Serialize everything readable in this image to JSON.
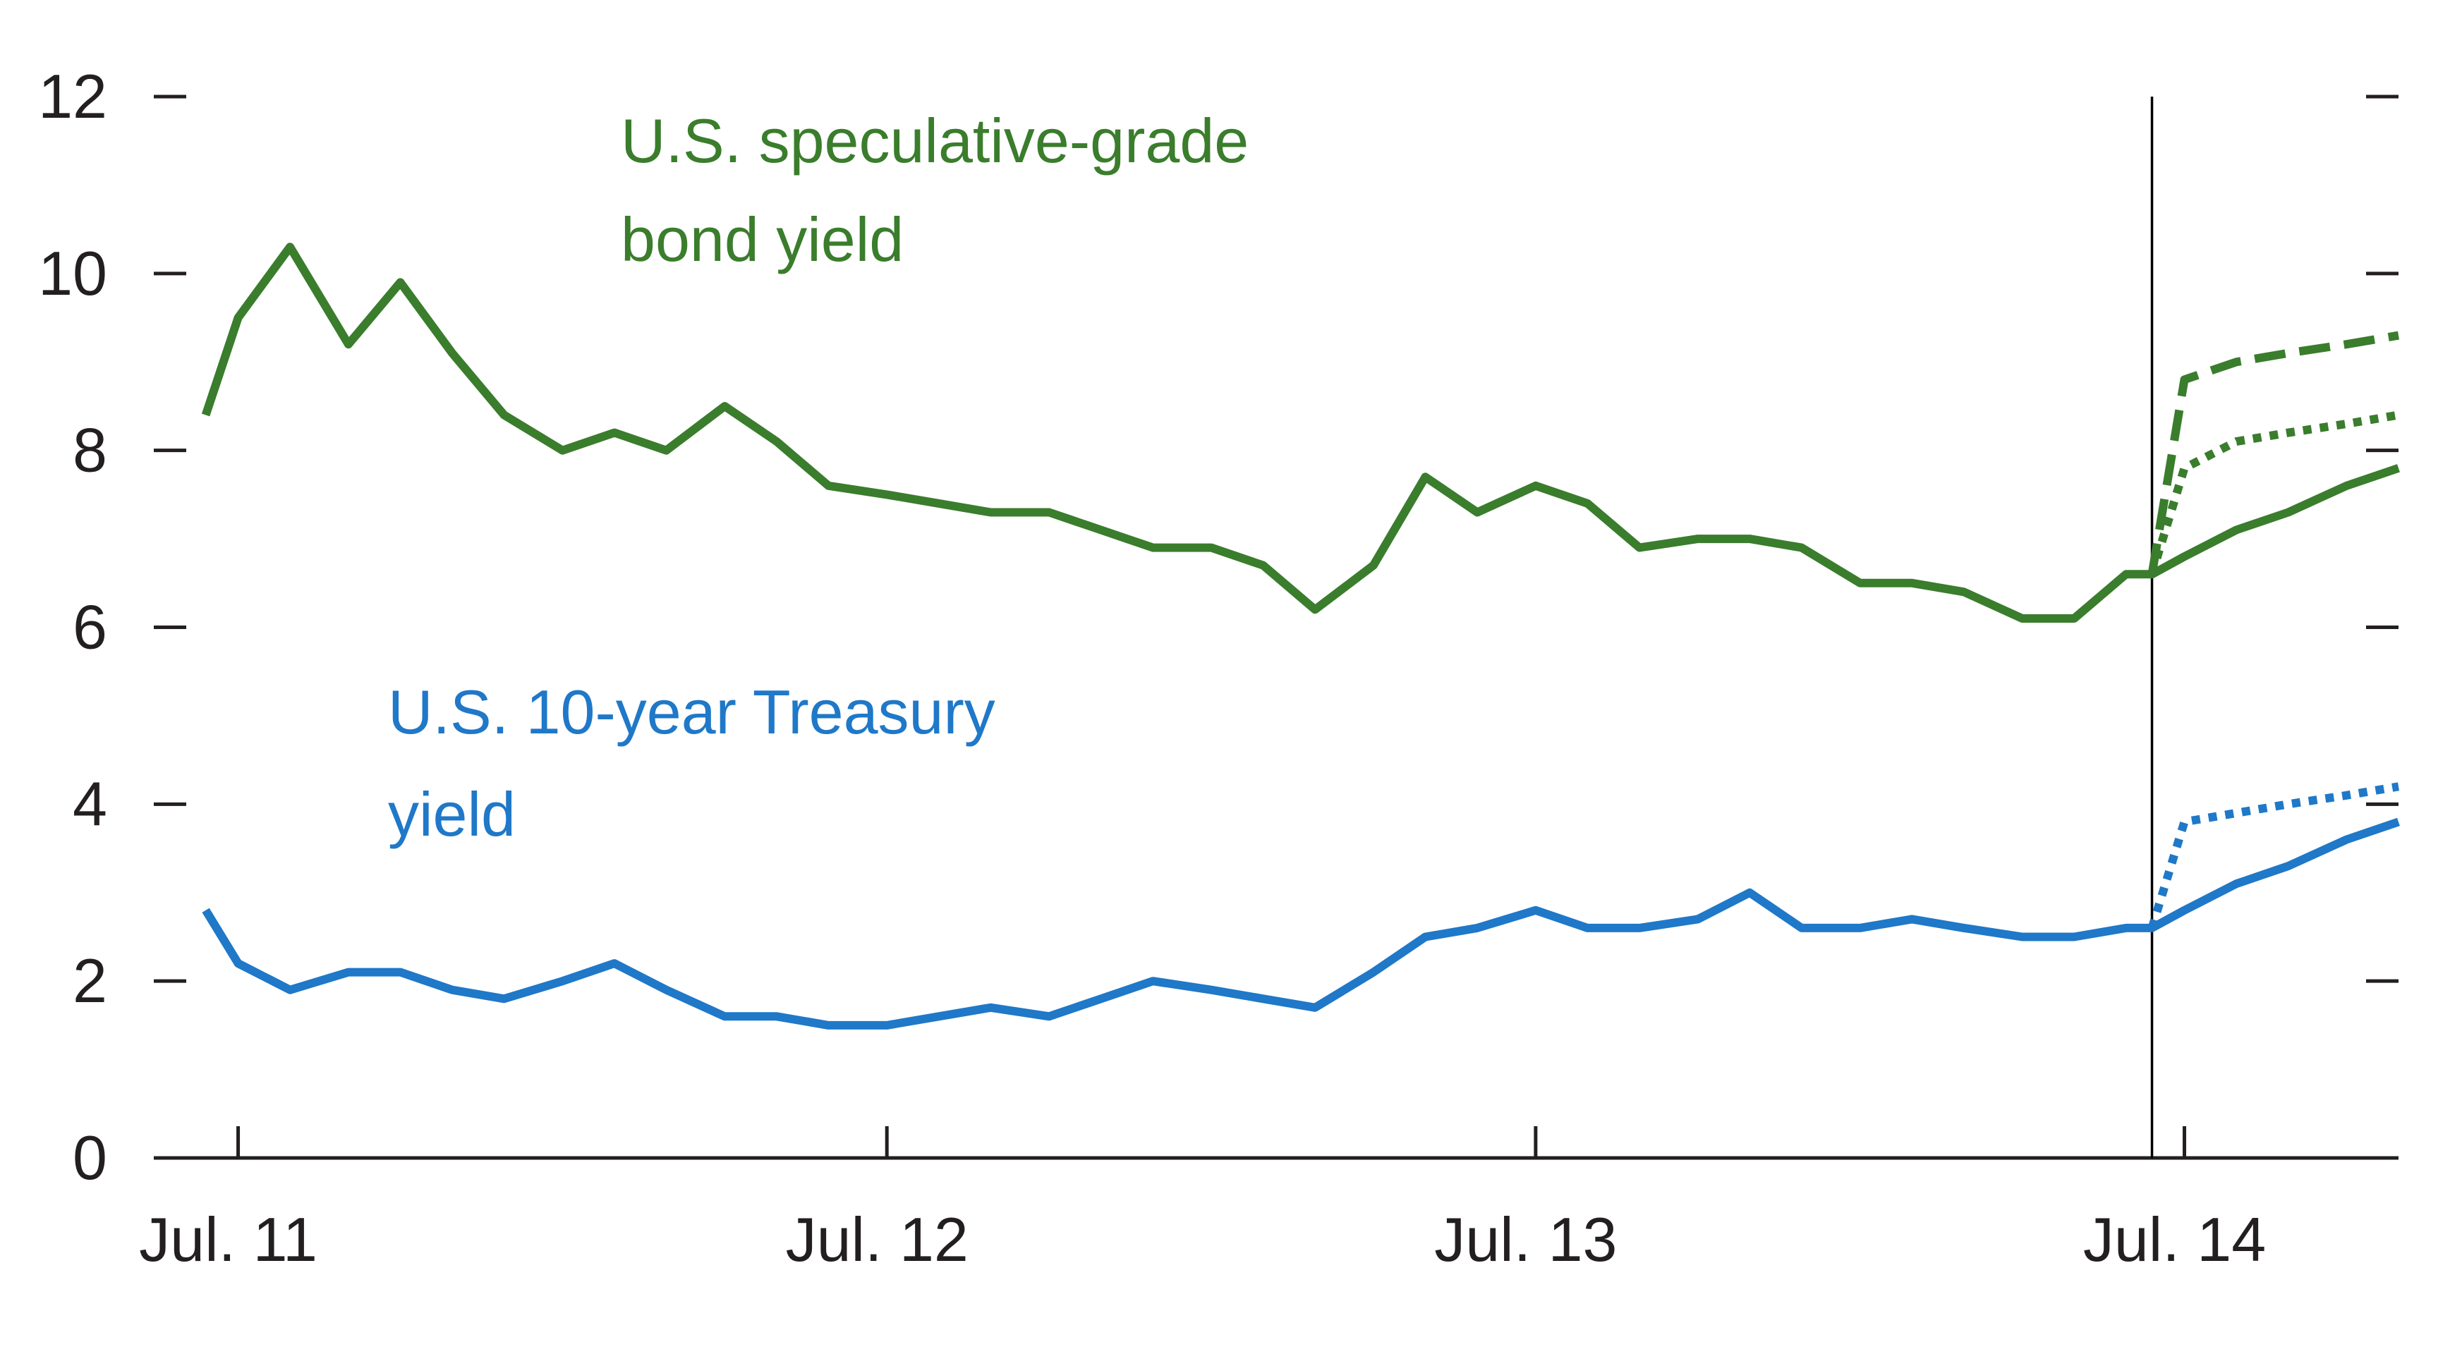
{
  "chart_data": {
    "type": "line",
    "title": "",
    "xlabel": "",
    "ylabel": "",
    "ylim": [
      0,
      12
    ],
    "yticks": [
      0,
      2,
      4,
      6,
      8,
      10,
      12
    ],
    "xlim": [
      -0.13,
      3.33
    ],
    "xticks": [
      {
        "label": "Jul. 11",
        "value": 0
      },
      {
        "label": "Jul. 12",
        "value": 1
      },
      {
        "label": "Jul. 13",
        "value": 2
      },
      {
        "label": "Jul. 14",
        "value": 3
      }
    ],
    "projection_start": 2.95,
    "series": [
      {
        "name": "U.S. speculative-grade bond yield",
        "label_lines": [
          "U.S. speculative-grade",
          "bond yield"
        ],
        "color": "#3a7d2c",
        "style": "solid",
        "x": [
          -0.05,
          0.0,
          0.08,
          0.17,
          0.25,
          0.33,
          0.41,
          0.5,
          0.58,
          0.66,
          0.75,
          0.83,
          0.91,
          1.0,
          1.08,
          1.16,
          1.25,
          1.33,
          1.41,
          1.5,
          1.58,
          1.66,
          1.75,
          1.83,
          1.91,
          2.0,
          2.08,
          2.16,
          2.25,
          2.33,
          2.41,
          2.5,
          2.58,
          2.66,
          2.75,
          2.83,
          2.91,
          2.95,
          3.0,
          3.08,
          3.16,
          3.25,
          3.33
        ],
        "y": [
          8.4,
          9.5,
          10.3,
          9.2,
          9.9,
          9.1,
          8.4,
          8.0,
          8.2,
          8.0,
          8.5,
          8.1,
          7.6,
          7.5,
          7.4,
          7.3,
          7.3,
          7.1,
          6.9,
          6.9,
          6.7,
          6.2,
          6.7,
          7.7,
          7.3,
          7.6,
          7.4,
          6.9,
          7.0,
          7.0,
          6.9,
          6.5,
          6.5,
          6.4,
          6.1,
          6.1,
          6.6,
          6.6,
          6.8,
          7.1,
          7.3,
          7.6,
          7.8
        ]
      },
      {
        "name": "U.S. speculative-grade bond yield (scenario A)",
        "color": "#3a7d2c",
        "style": "dashed",
        "x": [
          2.95,
          3.0,
          3.08,
          3.16,
          3.25,
          3.33
        ],
        "y": [
          6.6,
          8.8,
          9.0,
          9.1,
          9.2,
          9.3
        ]
      },
      {
        "name": "U.S. speculative-grade bond yield (scenario B)",
        "color": "#3a7d2c",
        "style": "dotted",
        "x": [
          2.95,
          3.0,
          3.08,
          3.16,
          3.25,
          3.33
        ],
        "y": [
          6.6,
          7.8,
          8.1,
          8.2,
          8.3,
          8.4
        ]
      },
      {
        "name": "U.S. 10-year Treasury yield",
        "label_lines": [
          "U.S. 10-year Treasury",
          "yield"
        ],
        "color": "#1f78c8",
        "style": "solid",
        "x": [
          -0.05,
          0.0,
          0.08,
          0.17,
          0.25,
          0.33,
          0.41,
          0.5,
          0.58,
          0.66,
          0.75,
          0.83,
          0.91,
          1.0,
          1.08,
          1.16,
          1.25,
          1.33,
          1.41,
          1.5,
          1.58,
          1.66,
          1.75,
          1.83,
          1.91,
          2.0,
          2.08,
          2.16,
          2.25,
          2.33,
          2.41,
          2.5,
          2.58,
          2.66,
          2.75,
          2.83,
          2.91,
          2.95,
          3.0,
          3.08,
          3.16,
          3.25,
          3.33
        ],
        "y": [
          2.8,
          2.2,
          1.9,
          2.1,
          2.1,
          1.9,
          1.8,
          2.0,
          2.2,
          1.9,
          1.6,
          1.6,
          1.5,
          1.5,
          1.6,
          1.7,
          1.6,
          1.8,
          2.0,
          1.9,
          1.8,
          1.7,
          2.1,
          2.5,
          2.6,
          2.8,
          2.6,
          2.6,
          2.7,
          3.0,
          2.6,
          2.6,
          2.7,
          2.6,
          2.5,
          2.5,
          2.6,
          2.6,
          2.8,
          3.1,
          3.3,
          3.6,
          3.8
        ]
      },
      {
        "name": "U.S. 10-year Treasury yield (scenario)",
        "color": "#1f78c8",
        "style": "dotted",
        "x": [
          2.95,
          3.0,
          3.08,
          3.16,
          3.25,
          3.33
        ],
        "y": [
          2.6,
          3.8,
          3.9,
          4.0,
          4.1,
          4.2
        ]
      }
    ]
  }
}
